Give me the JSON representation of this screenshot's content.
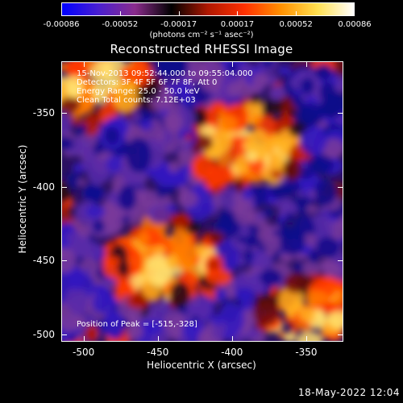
{
  "colorbar": {
    "tick_labels": [
      "-0.00086",
      "-0.00052",
      "-0.00017",
      "0.00017",
      "0.00052",
      "0.00086"
    ],
    "units": "(photons cm⁻² s⁻¹ asec⁻²)",
    "colors": [
      "#0000ff",
      "#4a1fd0",
      "#8a2c8c",
      "#000000",
      "#b01800",
      "#ff3000",
      "#ff9000",
      "#ffe050",
      "#ffffff"
    ]
  },
  "title": "Reconstructed RHESSI Image",
  "annotations": {
    "time": "15-Nov-2013 09:52:44.000 to 09:55:04.000",
    "detectors": "Detectors: 3F 4F 5F 6F 7F 8F, Att 0",
    "energy": "Energy Range: 25.0 - 50.0 keV",
    "clean": "Clean    Total counts: 7.12E+03",
    "peak": "Position of Peak = [-515,-328]"
  },
  "axes": {
    "x_label": "Heliocentric X (arcsec)",
    "y_label": "Heliocentric Y (arcsec)",
    "x_ticks": [
      "-500",
      "-450",
      "-400",
      "-350"
    ],
    "y_ticks": [
      "-350",
      "-400",
      "-450",
      "-500"
    ],
    "x_range": [
      -515,
      -325
    ],
    "y_range": [
      -505,
      -315
    ]
  },
  "footer": "18-May-2022 12:04"
}
